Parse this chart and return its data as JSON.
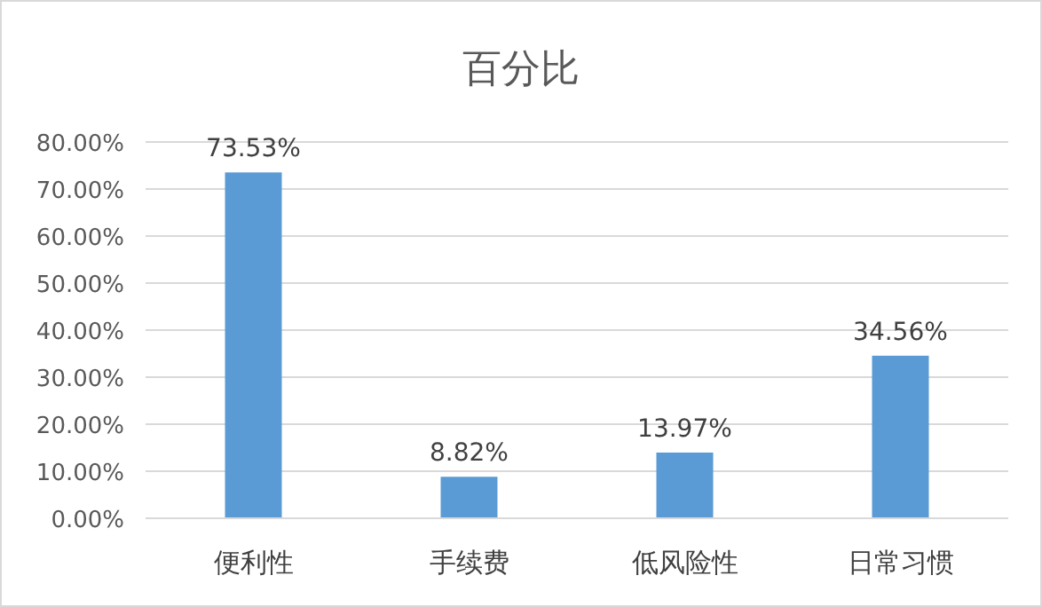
{
  "chart_data": {
    "type": "bar",
    "title": "百分比",
    "categories": [
      "便利性",
      "手续费",
      "低风险性",
      "日常习惯"
    ],
    "values": [
      73.53,
      8.82,
      13.97,
      34.56
    ],
    "value_labels": [
      "73.53%",
      "8.82%",
      "13.97%",
      "34.56%"
    ],
    "color": "#5b9bd5",
    "ylim": [
      0,
      80
    ],
    "yticks": [
      {
        "value": 0,
        "label": "0.00%"
      },
      {
        "value": 10,
        "label": "10.00%"
      },
      {
        "value": 20,
        "label": "20.00%"
      },
      {
        "value": 30,
        "label": "30.00%"
      },
      {
        "value": 40,
        "label": "40.00%"
      },
      {
        "value": 50,
        "label": "50.00%"
      },
      {
        "value": 60,
        "label": "60.00%"
      },
      {
        "value": 70,
        "label": "70.00%"
      },
      {
        "value": 80,
        "label": "80.00%"
      }
    ],
    "grid": "y"
  }
}
